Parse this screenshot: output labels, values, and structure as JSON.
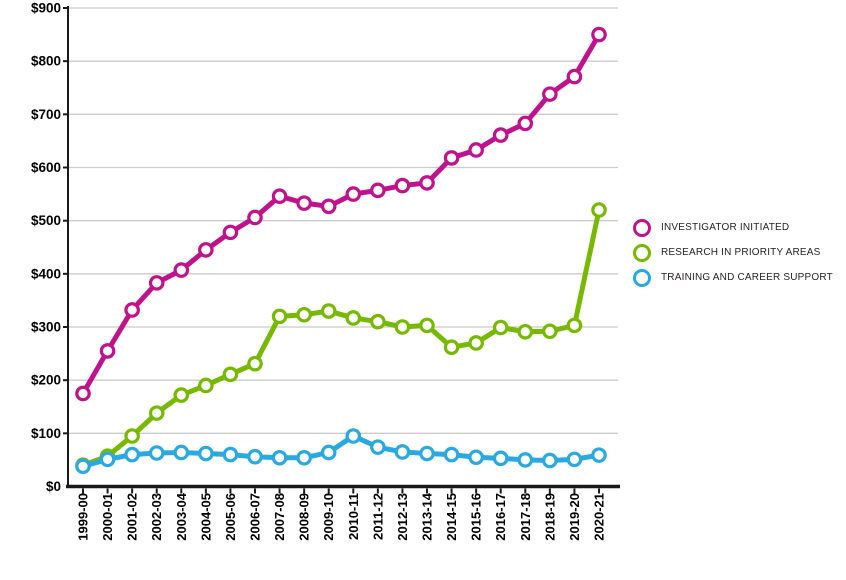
{
  "page": {
    "background": "#ffffff"
  },
  "chart_data": {
    "type": "line",
    "title": "",
    "xlabel": "",
    "ylabel": "",
    "categories": [
      "1999-00",
      "2000-01",
      "2001-02",
      "2002-03",
      "2003-04",
      "2004-05",
      "2005-06",
      "2006-07",
      "2007-08",
      "2008-09",
      "2009-10",
      "2010-11",
      "2011-12",
      "2012-13",
      "2013-14",
      "2014-15",
      "2015-16",
      "2016-17",
      "2017-18",
      "2018-19",
      "2019-20",
      "2020-21"
    ],
    "series": [
      {
        "name": "INVESTIGATOR INITIATED",
        "color": "#C0128C",
        "values": [
          175,
          255,
          332,
          383,
          407,
          445,
          478,
          506,
          546,
          533,
          527,
          550,
          557,
          566,
          571,
          618,
          633,
          661,
          683,
          738,
          771,
          850
        ]
      },
      {
        "name": "RESEARCH IN PRIORITY AREAS",
        "color": "#77B800",
        "values": [
          40,
          57,
          95,
          138,
          172,
          190,
          211,
          231,
          320,
          323,
          330,
          317,
          310,
          300,
          303,
          262,
          270,
          299,
          291,
          292,
          303,
          520
        ]
      },
      {
        "name": "TRAINING AND CAREER SUPPORT",
        "color": "#2AA9E0",
        "values": [
          38,
          51,
          60,
          63,
          64,
          62,
          60,
          56,
          54,
          54,
          64,
          95,
          74,
          65,
          62,
          60,
          55,
          53,
          50,
          49,
          51,
          59
        ]
      }
    ],
    "ylim": [
      0,
      900
    ],
    "y_tick_step": 100,
    "y_tick_labels": [
      "$0",
      "$100",
      "$200",
      "$300",
      "$400",
      "$500",
      "$600",
      "$700",
      "$800",
      "$900"
    ],
    "grid": true,
    "gridline_color": "#CBCBCB",
    "axis_color": "#1A1A1A",
    "tick_label_color": "#000000",
    "legend_position": "right",
    "marker": "open-circle"
  }
}
